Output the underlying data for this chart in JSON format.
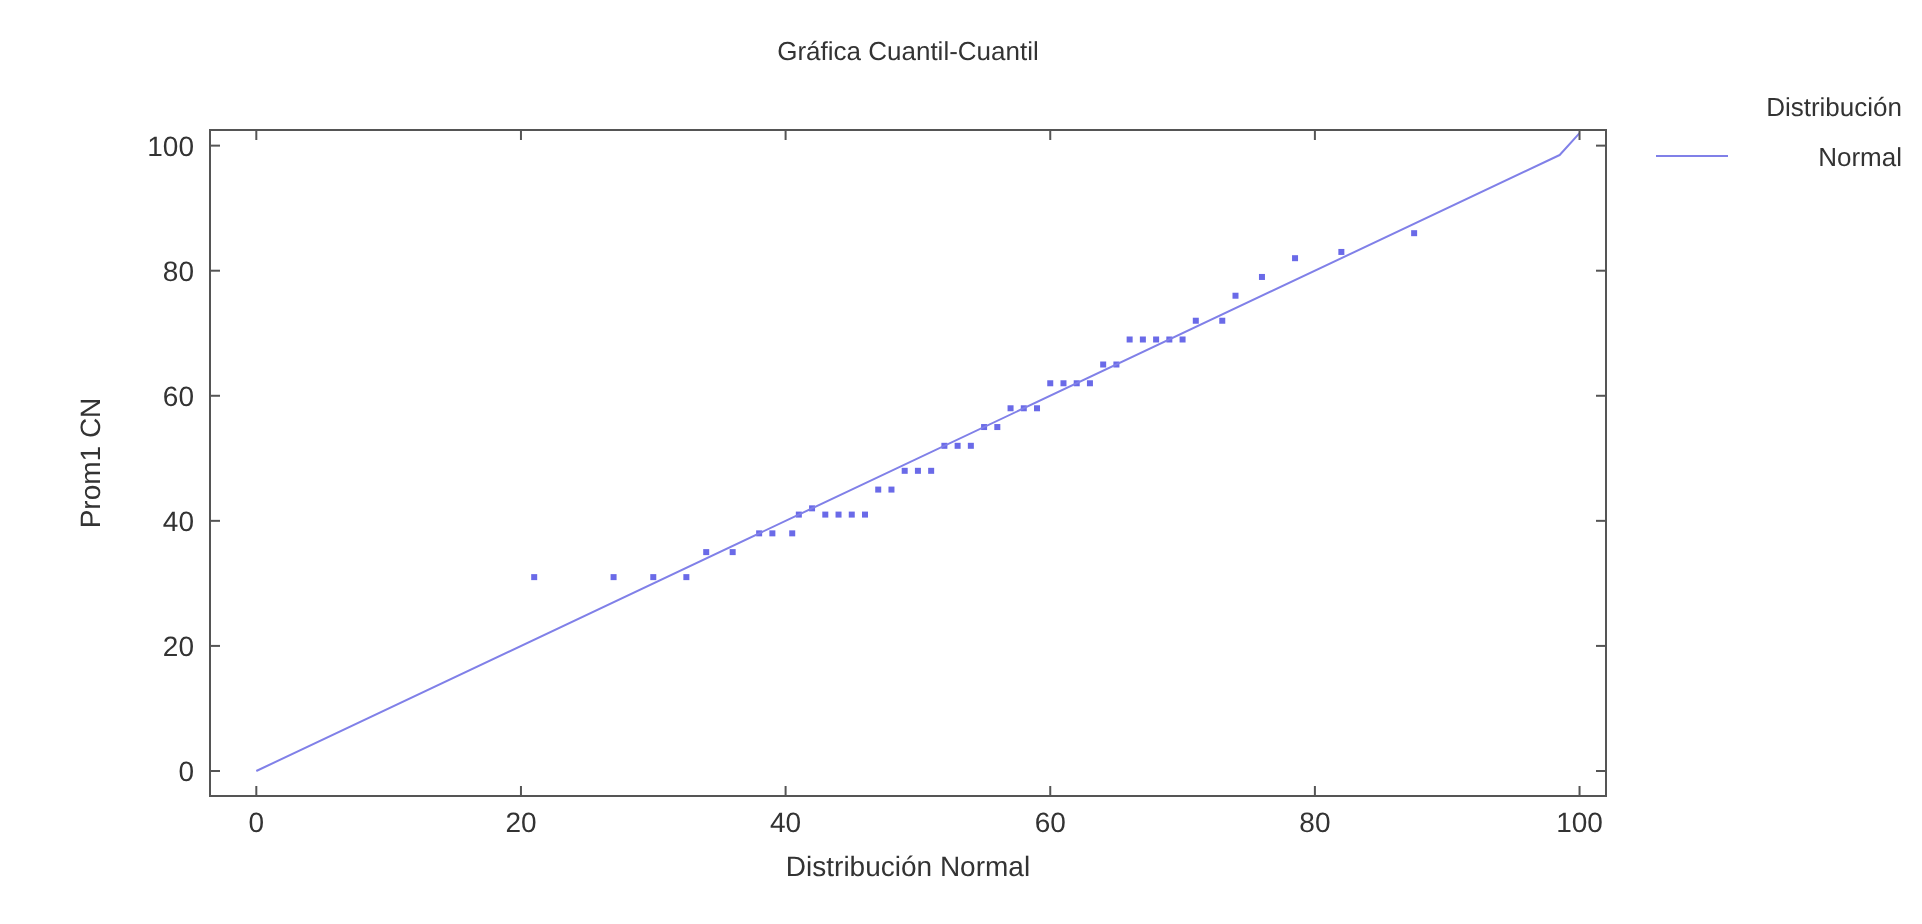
{
  "chart_data": {
    "type": "scatter",
    "title": "Gráfica Cuantil-Cuantil",
    "xlabel": "Distribución Normal",
    "ylabel": "Prom1 CN",
    "legend_title": "Distribución",
    "legend": "right",
    "xlim": [
      -3.5,
      102
    ],
    "ylim": [
      -4,
      102.5
    ],
    "xticks": [
      0,
      20,
      40,
      60,
      80,
      100
    ],
    "yticks": [
      0,
      20,
      40,
      60,
      80,
      100
    ],
    "grid": false,
    "series": [
      {
        "marker": "square",
        "color": "#6a6ae8",
        "x": [
          21,
          27,
          30,
          32.5,
          34,
          36,
          38,
          39,
          40.5,
          41,
          42,
          43,
          44,
          45,
          46,
          47,
          48,
          49,
          50,
          51,
          52,
          53,
          54,
          55,
          56,
          57,
          58,
          59,
          60,
          61,
          62,
          63,
          64,
          65,
          66,
          67,
          68,
          69,
          70,
          71,
          73,
          74,
          76,
          78.5,
          82,
          87.5
        ],
        "values": [
          31,
          31,
          31,
          31,
          35,
          35,
          38,
          38,
          38,
          41,
          42,
          41,
          41,
          41,
          41,
          45,
          45,
          48,
          48,
          48,
          52,
          52,
          52,
          55,
          55,
          58,
          58,
          58,
          62,
          62,
          62,
          62,
          65,
          65,
          69,
          69,
          69,
          69,
          69,
          72,
          72,
          76,
          79,
          82,
          83,
          86
        ]
      },
      {
        "type": "line",
        "name": "Normal",
        "color": "#8080e8",
        "line_style": "solid",
        "x": [
          0,
          98.5,
          100
        ],
        "values": [
          0,
          98.5,
          102
        ]
      }
    ]
  }
}
